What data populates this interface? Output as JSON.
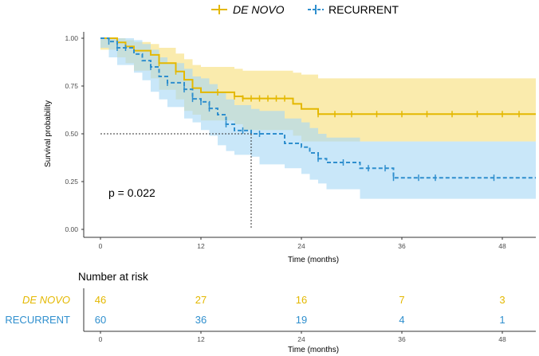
{
  "chart_data": {
    "type": "line",
    "subtype": "kaplan-meier",
    "xlabel": "Time (months)",
    "ylabel": "Survival probability",
    "xlim": [
      0,
      52
    ],
    "ylim": [
      0,
      1
    ],
    "xticks": [
      "0",
      "12",
      "24",
      "36",
      "48"
    ],
    "yticks": [
      "0.00",
      "0.25",
      "0.50",
      "0.75",
      "1.00"
    ],
    "p_value_text": "p = 0.022",
    "median_line": {
      "x": 18,
      "y": 0.5
    },
    "series": [
      {
        "name": "DE NOVO",
        "color": "#e4b800",
        "fill": "#f7df7a",
        "style": "solid",
        "steps": [
          [
            0,
            1.0
          ],
          [
            2,
            0.978
          ],
          [
            3,
            0.957
          ],
          [
            4,
            0.935
          ],
          [
            6,
            0.913
          ],
          [
            7,
            0.87
          ],
          [
            9,
            0.826
          ],
          [
            10,
            0.783
          ],
          [
            11,
            0.739
          ],
          [
            12,
            0.717
          ],
          [
            16,
            0.696
          ],
          [
            17,
            0.685
          ],
          [
            23,
            0.657
          ],
          [
            24,
            0.63
          ],
          [
            26,
            0.603
          ],
          [
            52,
            0.603
          ]
        ],
        "lower": [
          [
            0,
            1.0
          ],
          [
            2,
            0.94
          ],
          [
            3,
            0.9
          ],
          [
            4,
            0.87
          ],
          [
            6,
            0.83
          ],
          [
            7,
            0.79
          ],
          [
            9,
            0.73
          ],
          [
            10,
            0.68
          ],
          [
            11,
            0.62
          ],
          [
            12,
            0.6
          ],
          [
            16,
            0.57
          ],
          [
            17,
            0.55
          ],
          [
            23,
            0.52
          ],
          [
            24,
            0.49
          ],
          [
            26,
            0.46
          ],
          [
            52,
            0.46
          ]
        ],
        "upper": [
          [
            0,
            1.0
          ],
          [
            2,
            1.0
          ],
          [
            3,
            0.99
          ],
          [
            4,
            0.98
          ],
          [
            6,
            0.97
          ],
          [
            7,
            0.95
          ],
          [
            9,
            0.92
          ],
          [
            10,
            0.89
          ],
          [
            11,
            0.86
          ],
          [
            12,
            0.85
          ],
          [
            16,
            0.84
          ],
          [
            17,
            0.83
          ],
          [
            23,
            0.82
          ],
          [
            24,
            0.81
          ],
          [
            26,
            0.79
          ],
          [
            52,
            0.79
          ]
        ],
        "censor_times": [
          7,
          9,
          14,
          16,
          17,
          18,
          19,
          20,
          21,
          22,
          26,
          28,
          30,
          33,
          36,
          39,
          42,
          45,
          48,
          50
        ],
        "risk": [
          "46",
          "27",
          "16",
          "7",
          "3"
        ]
      },
      {
        "name": "RECURRENT",
        "color": "#2f8fce",
        "fill": "#a8d8f5",
        "style": "dashed",
        "steps": [
          [
            0,
            1.0
          ],
          [
            1,
            0.983
          ],
          [
            2,
            0.95
          ],
          [
            4,
            0.917
          ],
          [
            5,
            0.883
          ],
          [
            6,
            0.85
          ],
          [
            7,
            0.8
          ],
          [
            8,
            0.767
          ],
          [
            10,
            0.733
          ],
          [
            11,
            0.683
          ],
          [
            12,
            0.667
          ],
          [
            13,
            0.633
          ],
          [
            14,
            0.6
          ],
          [
            15,
            0.55
          ],
          [
            16,
            0.517
          ],
          [
            18,
            0.5
          ],
          [
            19,
            0.5
          ],
          [
            22,
            0.45
          ],
          [
            24,
            0.43
          ],
          [
            25,
            0.4
          ],
          [
            26,
            0.37
          ],
          [
            27,
            0.35
          ],
          [
            31,
            0.32
          ],
          [
            35,
            0.27
          ],
          [
            52,
            0.27
          ]
        ],
        "lower": [
          [
            0,
            1.0
          ],
          [
            1,
            0.95
          ],
          [
            2,
            0.9
          ],
          [
            4,
            0.86
          ],
          [
            5,
            0.82
          ],
          [
            6,
            0.78
          ],
          [
            7,
            0.72
          ],
          [
            8,
            0.68
          ],
          [
            10,
            0.64
          ],
          [
            11,
            0.58
          ],
          [
            12,
            0.56
          ],
          [
            13,
            0.52
          ],
          [
            14,
            0.49
          ],
          [
            15,
            0.44
          ],
          [
            16,
            0.41
          ],
          [
            18,
            0.39
          ],
          [
            19,
            0.38
          ],
          [
            22,
            0.34
          ],
          [
            24,
            0.32
          ],
          [
            25,
            0.29
          ],
          [
            26,
            0.26
          ],
          [
            27,
            0.24
          ],
          [
            31,
            0.21
          ],
          [
            35,
            0.16
          ],
          [
            52,
            0.16
          ]
        ],
        "upper": [
          [
            0,
            1.0
          ],
          [
            1,
            1.0
          ],
          [
            2,
            1.0
          ],
          [
            4,
            0.99
          ],
          [
            5,
            0.97
          ],
          [
            6,
            0.94
          ],
          [
            7,
            0.9
          ],
          [
            8,
            0.87
          ],
          [
            10,
            0.84
          ],
          [
            11,
            0.8
          ],
          [
            12,
            0.79
          ],
          [
            13,
            0.76
          ],
          [
            14,
            0.72
          ],
          [
            15,
            0.68
          ],
          [
            16,
            0.65
          ],
          [
            18,
            0.63
          ],
          [
            19,
            0.62
          ],
          [
            22,
            0.58
          ],
          [
            24,
            0.56
          ],
          [
            25,
            0.53
          ],
          [
            26,
            0.5
          ],
          [
            27,
            0.48
          ],
          [
            31,
            0.46
          ],
          [
            35,
            0.46
          ],
          [
            52,
            0.46
          ]
        ],
        "censor_times": [
          1,
          2,
          3,
          6,
          8,
          10,
          11,
          12,
          13,
          15,
          17,
          19,
          26,
          29,
          32,
          34,
          35,
          38,
          40,
          47
        ],
        "risk": [
          "60",
          "36",
          "19",
          "4",
          "1"
        ]
      }
    ]
  },
  "legend": {
    "items": [
      "DE NOVO",
      "RECURRENT"
    ]
  },
  "risk_table": {
    "title": "Number at risk",
    "xticks": [
      "0",
      "12",
      "24",
      "36",
      "48"
    ],
    "xlabel": "Time (months)"
  }
}
